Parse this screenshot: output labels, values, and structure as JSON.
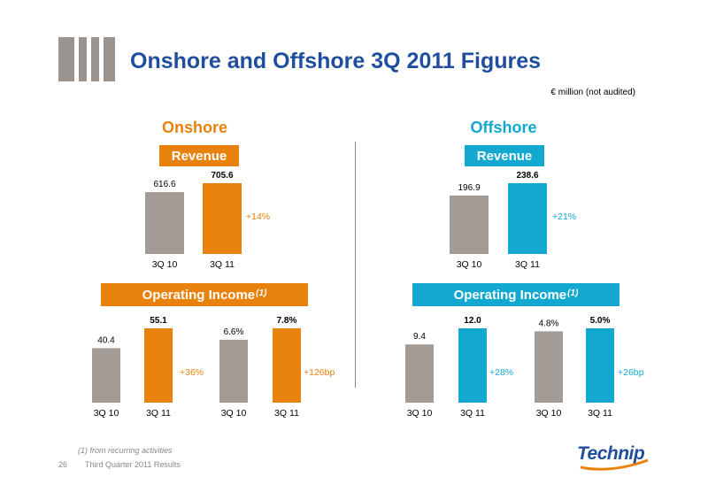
{
  "header": {
    "title": "Onshore and Offshore 3Q 2011 Figures",
    "unit_note": "€ million (not audited)"
  },
  "colors": {
    "accent_blue": "#1f4e9e",
    "onshore": "#e8820c",
    "offshore": "#13a8d0",
    "grey_bar": "#a39c96",
    "decor_grey": "#9b948e"
  },
  "onshore": {
    "title": "Onshore",
    "revenue_label": "Revenue",
    "operating_income_label": "Operating Income",
    "operating_income_sup": "(1)"
  },
  "offshore": {
    "title": "Offshore",
    "revenue_label": "Revenue",
    "operating_income_label": "Operating Income",
    "operating_income_sup": "(1)"
  },
  "footer": {
    "footnote": "(1) from recurring activities",
    "page_number": "26",
    "presentation": "Third Quarter 2011 Results",
    "logo_text": "Technip"
  },
  "chart_data": [
    {
      "id": "onshore-revenue",
      "type": "bar",
      "categories": [
        "3Q 10",
        "3Q 11"
      ],
      "values": [
        616.6,
        705.6
      ],
      "value_labels": [
        "616.6",
        "705.6"
      ],
      "colors": [
        "#a39c96",
        "#e8820c"
      ],
      "change_label": "+14%",
      "change_color": "#e8820c"
    },
    {
      "id": "onshore-operating-income",
      "type": "bar",
      "categories": [
        "3Q 10",
        "3Q 11"
      ],
      "values": [
        40.4,
        55.1
      ],
      "value_labels": [
        "40.4",
        "55.1"
      ],
      "colors": [
        "#a39c96",
        "#e8820c"
      ],
      "change_label": "+36%",
      "change_color": "#e8820c"
    },
    {
      "id": "onshore-operating-margin",
      "type": "bar",
      "categories": [
        "3Q 10",
        "3Q 11"
      ],
      "values": [
        6.6,
        7.8
      ],
      "value_labels": [
        "6.6%",
        "7.8%"
      ],
      "colors": [
        "#a39c96",
        "#e8820c"
      ],
      "change_label": "+126bp",
      "change_color": "#e8820c"
    },
    {
      "id": "offshore-revenue",
      "type": "bar",
      "categories": [
        "3Q 10",
        "3Q 11"
      ],
      "values": [
        196.9,
        238.6
      ],
      "value_labels": [
        "196.9",
        "238.6"
      ],
      "colors": [
        "#a39c96",
        "#13a8d0"
      ],
      "change_label": "+21%",
      "change_color": "#13a8d0"
    },
    {
      "id": "offshore-operating-income",
      "type": "bar",
      "categories": [
        "3Q 10",
        "3Q 11"
      ],
      "values": [
        9.4,
        12.0
      ],
      "value_labels": [
        "9.4",
        "12.0"
      ],
      "colors": [
        "#a39c96",
        "#13a8d0"
      ],
      "change_label": "+28%",
      "change_color": "#13a8d0"
    },
    {
      "id": "offshore-operating-margin",
      "type": "bar",
      "categories": [
        "3Q 10",
        "3Q 11"
      ],
      "values": [
        4.8,
        5.0
      ],
      "value_labels": [
        "4.8%",
        "5.0%"
      ],
      "colors": [
        "#a39c96",
        "#13a8d0"
      ],
      "change_label": "+26bp",
      "change_color": "#13a8d0"
    }
  ]
}
